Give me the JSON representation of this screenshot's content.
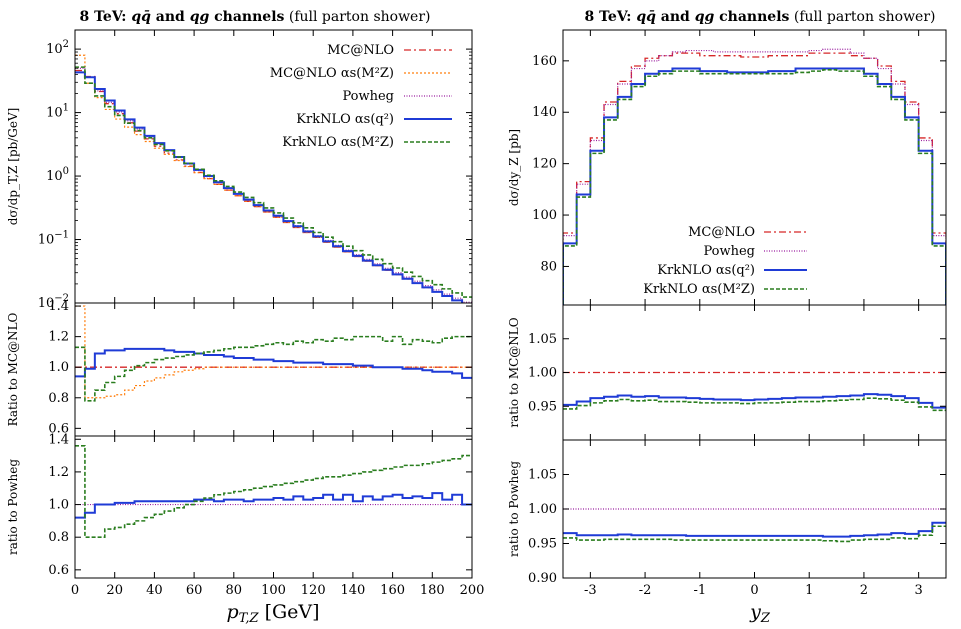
{
  "colors": {
    "mcatnlo": "#d62728",
    "mcatnlo_as": "#ff7f0e",
    "powheg": "#9b1fa0",
    "krk_q2": "#1f3bd6",
    "krk_mz": "#2a7d1f"
  },
  "chart_data": [
    {
      "type": "line",
      "title": "8 TeV: qq̄ and qg channels (full parton shower)",
      "xlabel": "p_T,Z [GeV]",
      "ylabel": "dσ/dp_T,Z [pb/GeV]",
      "xlim": [
        0,
        200
      ],
      "ylim": [
        0.01,
        200
      ],
      "yscale": "log",
      "xticks": [
        "0",
        "20",
        "40",
        "60",
        "80",
        "100",
        "120",
        "140",
        "160",
        "180",
        "200"
      ],
      "yticks": [
        "10^2",
        "10^1",
        "10^0",
        "10^-1",
        "10^-2"
      ],
      "x": [
        2.5,
        7.5,
        12.5,
        17.5,
        22.5,
        27.5,
        32.5,
        37.5,
        42.5,
        47.5,
        52.5,
        57.5,
        62.5,
        67.5,
        72.5,
        77.5,
        82.5,
        87.5,
        92.5,
        97.5,
        102.5,
        107.5,
        112.5,
        117.5,
        122.5,
        127.5,
        132.5,
        137.5,
        142.5,
        147.5,
        152.5,
        157.5,
        162.5,
        167.5,
        172.5,
        177.5,
        182.5,
        187.5,
        192.5,
        197.5
      ],
      "series": [
        {
          "name": "MC@NLO",
          "values": [
            46,
            37,
            21.5,
            13.8,
            9.6,
            6.9,
            5.1,
            3.85,
            2.95,
            2.3,
            1.8,
            1.43,
            1.14,
            0.91,
            0.74,
            0.6,
            0.49,
            0.4,
            0.33,
            0.272,
            0.225,
            0.186,
            0.155,
            0.129,
            0.108,
            0.0905,
            0.076,
            0.064,
            0.054,
            0.0457,
            0.0388,
            0.0329,
            0.028,
            0.0239,
            0.0205,
            0.0175,
            0.015,
            0.0129,
            0.0111,
            0.0096
          ]
        },
        {
          "name": "MC@NLO α_s(M_Z^2)",
          "values": [
            80,
            29,
            17.2,
            11.2,
            7.9,
            5.9,
            4.5,
            3.5,
            2.75,
            2.2,
            1.76,
            1.41,
            1.13,
            0.91,
            0.74,
            0.6,
            0.49,
            0.4,
            0.33,
            0.272,
            0.225,
            0.186,
            0.155,
            0.129,
            0.108,
            0.0905,
            0.076,
            0.064,
            0.054,
            0.0457,
            0.0388,
            0.0329,
            0.028,
            0.0239,
            0.0205,
            0.0175,
            0.015,
            0.0129,
            0.0111,
            0.0096
          ]
        },
        {
          "name": "Powheg",
          "values": [
            50,
            36,
            22,
            14.5,
            10.2,
            7.4,
            5.5,
            4.2,
            3.2,
            2.5,
            1.96,
            1.55,
            1.23,
            0.98,
            0.79,
            0.64,
            0.52,
            0.425,
            0.35,
            0.289,
            0.239,
            0.198,
            0.165,
            0.137,
            0.115,
            0.0965,
            0.081,
            0.0682,
            0.0576,
            0.0488,
            0.0414,
            0.0352,
            0.03,
            0.0256,
            0.022,
            0.0188,
            0.0161,
            0.0138,
            0.0119,
            0.0103
          ]
        },
        {
          "name": "KrkNLO α_s(q^2)",
          "values": [
            43,
            36,
            23.5,
            15.5,
            10.8,
            7.8,
            5.8,
            4.3,
            3.3,
            2.56,
            2.0,
            1.58,
            1.25,
            1.0,
            0.8,
            0.645,
            0.523,
            0.426,
            0.349,
            0.287,
            0.237,
            0.195,
            0.162,
            0.134,
            0.112,
            0.0935,
            0.0783,
            0.0656,
            0.0552,
            0.0466,
            0.0393,
            0.0334,
            0.0283,
            0.0241,
            0.0206,
            0.0176,
            0.015,
            0.0129,
            0.011,
            0.0096
          ]
        },
        {
          "name": "KrkNLO α_s(M_Z^2)",
          "values": [
            52,
            29,
            18.3,
            12.4,
            9.0,
            6.8,
            5.2,
            4.0,
            3.15,
            2.5,
            1.99,
            1.59,
            1.28,
            1.03,
            0.84,
            0.685,
            0.56,
            0.46,
            0.38,
            0.315,
            0.262,
            0.218,
            0.183,
            0.153,
            0.129,
            0.109,
            0.0925,
            0.0785,
            0.0668,
            0.0571,
            0.0487,
            0.0416,
            0.0356,
            0.0306,
            0.0262,
            0.0225,
            0.0194,
            0.0167,
            0.0144,
            0.0124
          ]
        }
      ],
      "legend": {
        "position": "top-right",
        "entries": [
          "MC@NLO",
          "MC@NLO α_s(M_Z^2)",
          "Powheg",
          "KrkNLO α_s(q^2)",
          "KrkNLO α_s(M_Z^2)"
        ]
      }
    },
    {
      "type": "line",
      "ylabel": "Ratio to MC@NLO",
      "xlim": [
        0,
        200
      ],
      "ylim": [
        0.55,
        1.42
      ],
      "yticks": [
        "1.4",
        "1.2",
        "1.0",
        "0.8",
        "0.6"
      ],
      "series": [
        {
          "name": "MC@NLO",
          "values": [
            1,
            1,
            1,
            1,
            1,
            1,
            1,
            1,
            1,
            1,
            1,
            1,
            1,
            1,
            1,
            1,
            1,
            1,
            1,
            1,
            1,
            1,
            1,
            1,
            1,
            1,
            1,
            1,
            1,
            1,
            1,
            1,
            1,
            1,
            1,
            1,
            1,
            1,
            1,
            1
          ]
        },
        {
          "name": "MC@NLO α_s(M_Z^2)",
          "values": [
            1.4,
            0.8,
            0.8,
            0.81,
            0.82,
            0.85,
            0.88,
            0.91,
            0.93,
            0.95,
            0.97,
            0.98,
            0.99,
            1.0,
            1.0,
            1.0,
            1.0,
            1.0,
            1.0,
            1.0,
            1.0,
            1.0,
            1.0,
            1.0,
            1.0,
            1.0,
            1.0,
            1.0,
            1.0,
            1.0,
            1.0,
            1.0,
            1.0,
            1.0,
            1.0,
            1.0,
            1.0,
            1.0,
            1.0,
            1.0
          ]
        },
        {
          "name": "KrkNLO α_s(q^2)",
          "values": [
            0.94,
            0.99,
            1.09,
            1.11,
            1.11,
            1.12,
            1.12,
            1.12,
            1.12,
            1.11,
            1.1,
            1.1,
            1.09,
            1.08,
            1.08,
            1.07,
            1.06,
            1.06,
            1.05,
            1.05,
            1.04,
            1.04,
            1.03,
            1.03,
            1.03,
            1.02,
            1.02,
            1.02,
            1.01,
            1.01,
            1.0,
            1.0,
            1.0,
            0.99,
            0.99,
            0.98,
            0.97,
            0.97,
            0.96,
            0.93
          ]
        },
        {
          "name": "KrkNLO α_s(M_Z^2)",
          "values": [
            1.13,
            0.78,
            0.85,
            0.9,
            0.94,
            0.98,
            1.01,
            1.03,
            1.05,
            1.06,
            1.07,
            1.08,
            1.09,
            1.1,
            1.11,
            1.12,
            1.13,
            1.13,
            1.14,
            1.15,
            1.16,
            1.15,
            1.17,
            1.16,
            1.18,
            1.17,
            1.19,
            1.18,
            1.2,
            1.2,
            1.2,
            1.17,
            1.2,
            1.15,
            1.18,
            1.17,
            1.16,
            1.19,
            1.2,
            1.2
          ]
        }
      ]
    },
    {
      "type": "line",
      "ylabel": "ratio to Powheg",
      "xlabel": "p_T,Z [GeV]",
      "xlim": [
        0,
        200
      ],
      "ylim": [
        0.55,
        1.42
      ],
      "yticks": [
        "1.4",
        "1.2",
        "1.0",
        "0.8",
        "0.6"
      ],
      "series": [
        {
          "name": "Powheg",
          "values": [
            1,
            1,
            1,
            1,
            1,
            1,
            1,
            1,
            1,
            1,
            1,
            1,
            1,
            1,
            1,
            1,
            1,
            1,
            1,
            1,
            1,
            1,
            1,
            1,
            1,
            1,
            1,
            1,
            1,
            1,
            1,
            1,
            1,
            1,
            1,
            1,
            1,
            1,
            1,
            1
          ]
        },
        {
          "name": "KrkNLO α_s(q^2)",
          "values": [
            0.92,
            0.95,
            1.0,
            1.0,
            1.01,
            1.01,
            1.02,
            1.02,
            1.02,
            1.02,
            1.02,
            1.02,
            1.03,
            1.03,
            1.02,
            1.03,
            1.03,
            1.02,
            1.03,
            1.03,
            1.04,
            1.03,
            1.05,
            1.03,
            1.04,
            1.06,
            1.03,
            1.06,
            1.02,
            1.05,
            1.03,
            1.05,
            1.06,
            1.04,
            1.05,
            1.04,
            1.07,
            1.03,
            1.06,
            1.0
          ]
        },
        {
          "name": "KrkNLO α_s(M_Z^2)",
          "values": [
            1.36,
            0.8,
            0.8,
            0.85,
            0.86,
            0.88,
            0.9,
            0.92,
            0.94,
            0.96,
            0.98,
            1.0,
            1.02,
            1.04,
            1.06,
            1.07,
            1.08,
            1.09,
            1.1,
            1.11,
            1.12,
            1.13,
            1.14,
            1.15,
            1.16,
            1.17,
            1.17,
            1.18,
            1.19,
            1.2,
            1.21,
            1.22,
            1.23,
            1.24,
            1.24,
            1.25,
            1.26,
            1.27,
            1.28,
            1.3
          ]
        }
      ]
    },
    {
      "type": "line",
      "title": "8 TeV: qq̄ and qg channels (full parton shower)",
      "xlabel": "y_Z",
      "ylabel": "dσ/dy_Z [pb]",
      "xlim": [
        -3.5,
        3.5
      ],
      "ylim": [
        65,
        172
      ],
      "xticks": [
        "-3",
        "-2",
        "-1",
        "0",
        "1",
        "2",
        "3"
      ],
      "yticks": [
        "160",
        "140",
        "120",
        "100",
        "80"
      ],
      "x": [
        -3.375,
        -3.125,
        -2.875,
        -2.625,
        -2.375,
        -2.125,
        -1.875,
        -1.625,
        -1.375,
        -1.125,
        -0.875,
        -0.625,
        -0.375,
        -0.125,
        0.125,
        0.375,
        0.625,
        0.875,
        1.125,
        1.375,
        1.625,
        1.875,
        2.125,
        2.375,
        2.625,
        2.875,
        3.125,
        3.375
      ],
      "series": [
        {
          "name": "MC@NLO",
          "values": [
            93,
            113,
            130,
            144,
            152,
            158,
            161,
            162,
            163,
            163,
            162,
            162,
            162,
            161.5,
            161.5,
            162,
            162,
            162,
            163,
            163,
            163,
            162,
            161,
            158,
            152,
            144,
            130,
            93
          ]
        },
        {
          "name": "Powheg",
          "values": [
            92,
            112,
            129,
            143,
            151,
            157,
            160,
            162,
            163.5,
            164,
            164,
            163.5,
            163.5,
            163.5,
            163.5,
            163.5,
            163.5,
            163.5,
            164,
            164.5,
            164.5,
            163,
            161,
            157,
            151,
            143,
            129,
            92
          ]
        },
        {
          "name": "KrkNLO α_s(q^2)",
          "values": [
            89,
            108,
            125,
            138,
            146,
            151,
            155,
            156,
            157,
            157,
            156,
            156,
            155.5,
            155.5,
            155.5,
            156,
            156,
            157,
            157,
            157,
            157,
            157,
            155,
            151,
            146,
            138,
            125,
            89
          ]
        },
        {
          "name": "KrkNLO α_s(M_Z^2)",
          "values": [
            88,
            107,
            124,
            137,
            145,
            150,
            154,
            155,
            156,
            156,
            155,
            155,
            155,
            155,
            155,
            155,
            155,
            155.5,
            156,
            156.5,
            156,
            156,
            154,
            150,
            145,
            137,
            124,
            88
          ]
        }
      ],
      "legend": {
        "position": "bottom-center",
        "entries": [
          "MC@NLO",
          "Powheg",
          "KrkNLO α_s(q^2)",
          "KrkNLO α_s(M_Z^2)"
        ]
      }
    },
    {
      "type": "line",
      "ylabel": "ratio to MC@NLO",
      "xlim": [
        -3.5,
        3.5
      ],
      "ylim": [
        0.9,
        1.1
      ],
      "yticks": [
        "1.05",
        "1.00",
        "0.95"
      ],
      "series": [
        {
          "name": "MC@NLO",
          "values": [
            1,
            1,
            1,
            1,
            1,
            1,
            1,
            1,
            1,
            1,
            1,
            1,
            1,
            1,
            1,
            1,
            1,
            1,
            1,
            1,
            1,
            1,
            1,
            1,
            1,
            1,
            1,
            1
          ]
        },
        {
          "name": "KrkNLO α_s(q^2)",
          "values": [
            0.952,
            0.957,
            0.962,
            0.964,
            0.966,
            0.964,
            0.965,
            0.963,
            0.963,
            0.962,
            0.961,
            0.96,
            0.96,
            0.959,
            0.96,
            0.961,
            0.962,
            0.963,
            0.963,
            0.964,
            0.965,
            0.966,
            0.968,
            0.967,
            0.965,
            0.962,
            0.955,
            0.948
          ]
        },
        {
          "name": "KrkNLO α_s(M_Z^2)",
          "values": [
            0.946,
            0.951,
            0.955,
            0.958,
            0.96,
            0.958,
            0.959,
            0.957,
            0.957,
            0.956,
            0.955,
            0.955,
            0.955,
            0.954,
            0.955,
            0.955,
            0.956,
            0.957,
            0.957,
            0.958,
            0.959,
            0.96,
            0.962,
            0.961,
            0.959,
            0.956,
            0.949,
            0.944
          ]
        }
      ]
    },
    {
      "type": "line",
      "ylabel": "ratio to Powheg",
      "xlabel": "y_Z",
      "xlim": [
        -3.5,
        3.5
      ],
      "ylim": [
        0.9,
        1.1
      ],
      "yticks": [
        "1.05",
        "1.00",
        "0.95",
        "0.90"
      ],
      "xticks": [
        "-3",
        "-2",
        "-1",
        "0",
        "1",
        "2",
        "3"
      ],
      "series": [
        {
          "name": "Powheg",
          "values": [
            1,
            1,
            1,
            1,
            1,
            1,
            1,
            1,
            1,
            1,
            1,
            1,
            1,
            1,
            1,
            1,
            1,
            1,
            1,
            1,
            1,
            1,
            1,
            1,
            1,
            1,
            1,
            1
          ]
        },
        {
          "name": "KrkNLO α_s(q^2)",
          "values": [
            0.965,
            0.962,
            0.962,
            0.962,
            0.963,
            0.962,
            0.962,
            0.962,
            0.962,
            0.961,
            0.961,
            0.961,
            0.961,
            0.961,
            0.961,
            0.961,
            0.961,
            0.961,
            0.961,
            0.96,
            0.96,
            0.961,
            0.962,
            0.963,
            0.965,
            0.964,
            0.968,
            0.98
          ]
        },
        {
          "name": "KrkNLO α_s(M_Z^2)",
          "values": [
            0.958,
            0.955,
            0.955,
            0.956,
            0.956,
            0.956,
            0.956,
            0.956,
            0.955,
            0.955,
            0.955,
            0.955,
            0.955,
            0.955,
            0.955,
            0.955,
            0.955,
            0.955,
            0.955,
            0.954,
            0.953,
            0.955,
            0.956,
            0.956,
            0.958,
            0.957,
            0.962,
            0.975
          ]
        }
      ]
    }
  ],
  "text": {
    "title_left": "8 TeV:",
    "title_right": "8 TeV:",
    "xlabel_left": "p",
    "xlabel_right": "y"
  }
}
